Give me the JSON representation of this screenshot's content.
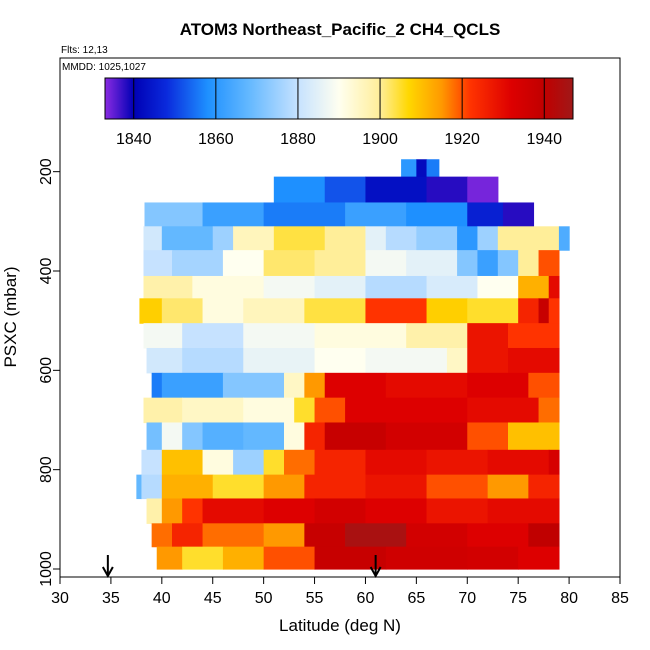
{
  "chart_data": {
    "type": "heatmap",
    "title": "ATOM3 Northeast_Pacific_2 CH4_QCLS",
    "flights_label": "Flts: 12,13",
    "dates_label": "MMDD: 1025,1027",
    "xlabel": "Latitude (deg N)",
    "ylabel": "PSXC (mbar)",
    "xlim": [
      30,
      85
    ],
    "ylim": [
      1000,
      0
    ],
    "x_ticks": [
      30,
      35,
      40,
      45,
      50,
      55,
      60,
      65,
      70,
      75,
      80,
      85
    ],
    "y_ticks": [
      200,
      400,
      600,
      800,
      1000
    ],
    "colorbar": {
      "min": 1833,
      "max": 1947,
      "ticks": [
        1840,
        1860,
        1880,
        1900,
        1920,
        1940
      ],
      "stops": [
        {
          "v": 1833,
          "color": "#8a2be2"
        },
        {
          "v": 1840,
          "color": "#0000b4"
        },
        {
          "v": 1848,
          "color": "#0a2adc"
        },
        {
          "v": 1858,
          "color": "#1e90ff"
        },
        {
          "v": 1868,
          "color": "#63b8ff"
        },
        {
          "v": 1880,
          "color": "#c6e2ff"
        },
        {
          "v": 1890,
          "color": "#fffff0"
        },
        {
          "v": 1900,
          "color": "#ffee99"
        },
        {
          "v": 1907,
          "color": "#ffd700"
        },
        {
          "v": 1915,
          "color": "#ff9900"
        },
        {
          "v": 1922,
          "color": "#ff3300"
        },
        {
          "v": 1932,
          "color": "#dd0000"
        },
        {
          "v": 1940,
          "color": "#c00000"
        },
        {
          "v": 1947,
          "color": "#a01818"
        }
      ]
    },
    "bands": [
      {
        "p_top": 175,
        "p_bot": 210,
        "segments": [
          [
            63.5,
            65,
            1860
          ],
          [
            65,
            66,
            1842
          ],
          [
            66,
            67.2,
            1856
          ]
        ]
      },
      {
        "p_top": 210,
        "p_bot": 262,
        "segments": [
          [
            51,
            56,
            1858
          ],
          [
            56,
            60,
            1852
          ],
          [
            60,
            66,
            1843
          ],
          [
            66,
            70,
            1838
          ],
          [
            70,
            73,
            1834
          ]
        ]
      },
      {
        "p_top": 262,
        "p_bot": 310,
        "segments": [
          [
            38.3,
            44,
            1872
          ],
          [
            44,
            50,
            1862
          ],
          [
            50,
            58,
            1856
          ],
          [
            58,
            64,
            1862
          ],
          [
            64,
            70,
            1858
          ],
          [
            70,
            73.5,
            1846
          ],
          [
            73.5,
            76.5,
            1838
          ]
        ]
      },
      {
        "p_top": 310,
        "p_bot": 358,
        "segments": [
          [
            38.2,
            40,
            1882
          ],
          [
            40,
            45,
            1868
          ],
          [
            45,
            47,
            1875
          ],
          [
            47,
            51,
            1896
          ],
          [
            51,
            56,
            1904
          ],
          [
            56,
            60,
            1900
          ],
          [
            60,
            62,
            1885
          ],
          [
            62,
            65,
            1878
          ],
          [
            65,
            69,
            1874
          ],
          [
            69,
            71,
            1860
          ],
          [
            71,
            73,
            1875
          ],
          [
            73,
            79,
            1900
          ],
          [
            79,
            80,
            1865
          ]
        ]
      },
      {
        "p_top": 358,
        "p_bot": 410,
        "segments": [
          [
            38.2,
            41,
            1880
          ],
          [
            41,
            46,
            1876
          ],
          [
            46,
            50,
            1890
          ],
          [
            50,
            55,
            1902
          ],
          [
            55,
            60,
            1900
          ],
          [
            60,
            64,
            1888
          ],
          [
            64,
            69,
            1885
          ],
          [
            69,
            71,
            1872
          ],
          [
            71,
            73,
            1862
          ],
          [
            73,
            75,
            1872
          ],
          [
            75,
            77,
            1900
          ],
          [
            77,
            79,
            1920
          ]
        ]
      },
      {
        "p_top": 410,
        "p_bot": 455,
        "segments": [
          [
            38.2,
            43,
            1898
          ],
          [
            43,
            50,
            1892
          ],
          [
            50,
            55,
            1888
          ],
          [
            55,
            60,
            1885
          ],
          [
            60,
            66,
            1878
          ],
          [
            66,
            71,
            1883
          ],
          [
            71,
            75,
            1890
          ],
          [
            75,
            78,
            1912
          ],
          [
            78,
            79,
            1930
          ]
        ]
      },
      {
        "p_top": 455,
        "p_bot": 505,
        "segments": [
          [
            37.8,
            40,
            1908
          ],
          [
            40,
            44,
            1902
          ],
          [
            44,
            48,
            1892
          ],
          [
            48,
            54,
            1896
          ],
          [
            54,
            60,
            1904
          ],
          [
            60,
            66,
            1922
          ],
          [
            66,
            70,
            1908
          ],
          [
            70,
            75,
            1905
          ],
          [
            75,
            77,
            1925
          ],
          [
            77,
            78,
            1938
          ],
          [
            78,
            79,
            1922
          ]
        ]
      },
      {
        "p_top": 505,
        "p_bot": 555,
        "segments": [
          [
            38.2,
            42,
            1888
          ],
          [
            42,
            48,
            1880
          ],
          [
            48,
            55,
            1888
          ],
          [
            55,
            64,
            1892
          ],
          [
            64,
            70,
            1898
          ],
          [
            70,
            74,
            1928
          ],
          [
            74,
            79,
            1922
          ]
        ]
      },
      {
        "p_top": 555,
        "p_bot": 605,
        "segments": [
          [
            38.5,
            42,
            1882
          ],
          [
            42,
            48,
            1878
          ],
          [
            48,
            55,
            1886
          ],
          [
            55,
            60,
            1890
          ],
          [
            60,
            68,
            1888
          ],
          [
            68,
            70,
            1895
          ],
          [
            70,
            74,
            1928
          ],
          [
            74,
            79,
            1930
          ]
        ]
      },
      {
        "p_top": 605,
        "p_bot": 655,
        "segments": [
          [
            39,
            40,
            1856
          ],
          [
            40,
            46,
            1862
          ],
          [
            46,
            52,
            1872
          ],
          [
            52,
            54,
            1895
          ],
          [
            54,
            56,
            1915
          ],
          [
            56,
            62,
            1932
          ],
          [
            62,
            70,
            1930
          ],
          [
            70,
            76,
            1932
          ],
          [
            76,
            79,
            1920
          ]
        ]
      },
      {
        "p_top": 655,
        "p_bot": 705,
        "segments": [
          [
            38.2,
            42,
            1898
          ],
          [
            42,
            48,
            1895
          ],
          [
            48,
            53,
            1892
          ],
          [
            53,
            55,
            1905
          ],
          [
            55,
            58,
            1920
          ],
          [
            58,
            70,
            1932
          ],
          [
            70,
            77,
            1930
          ],
          [
            77,
            79,
            1918
          ]
        ]
      },
      {
        "p_top": 705,
        "p_bot": 760,
        "segments": [
          [
            38.5,
            40,
            1870
          ],
          [
            40,
            42,
            1888
          ],
          [
            42,
            44,
            1872
          ],
          [
            44,
            48,
            1866
          ],
          [
            48,
            52,
            1868
          ],
          [
            52,
            54,
            1892
          ],
          [
            54,
            56,
            1925
          ],
          [
            56,
            62,
            1938
          ],
          [
            62,
            70,
            1935
          ],
          [
            70,
            74,
            1920
          ],
          [
            74,
            79,
            1910
          ]
        ]
      },
      {
        "p_top": 760,
        "p_bot": 810,
        "segments": [
          [
            38,
            40,
            1880
          ],
          [
            40,
            44,
            1910
          ],
          [
            44,
            47,
            1892
          ],
          [
            47,
            50,
            1875
          ],
          [
            50,
            52,
            1905
          ],
          [
            52,
            55,
            1918
          ],
          [
            55,
            60,
            1925
          ],
          [
            60,
            66,
            1930
          ],
          [
            66,
            72,
            1928
          ],
          [
            72,
            78,
            1930
          ],
          [
            78,
            79,
            1934
          ]
        ]
      },
      {
        "p_top": 810,
        "p_bot": 858,
        "segments": [
          [
            37.5,
            38,
            1868
          ],
          [
            38,
            40,
            1878
          ],
          [
            40,
            45,
            1912
          ],
          [
            45,
            50,
            1905
          ],
          [
            50,
            54,
            1915
          ],
          [
            54,
            60,
            1925
          ],
          [
            60,
            66,
            1928
          ],
          [
            66,
            72,
            1920
          ],
          [
            72,
            76,
            1915
          ],
          [
            76,
            79,
            1925
          ]
        ]
      },
      {
        "p_top": 858,
        "p_bot": 908,
        "segments": [
          [
            38.5,
            40,
            1898
          ],
          [
            40,
            42,
            1915
          ],
          [
            42,
            44,
            1922
          ],
          [
            44,
            50,
            1930
          ],
          [
            50,
            55,
            1932
          ],
          [
            55,
            60,
            1935
          ],
          [
            60,
            66,
            1932
          ],
          [
            66,
            72,
            1928
          ],
          [
            72,
            79,
            1930
          ]
        ]
      },
      {
        "p_top": 908,
        "p_bot": 955,
        "segments": [
          [
            39,
            41,
            1918
          ],
          [
            41,
            44,
            1925
          ],
          [
            44,
            50,
            1918
          ],
          [
            50,
            54,
            1915
          ],
          [
            54,
            58,
            1938
          ],
          [
            58,
            64,
            1945
          ],
          [
            64,
            70,
            1935
          ],
          [
            70,
            76,
            1932
          ],
          [
            76,
            79,
            1940
          ]
        ]
      },
      {
        "p_top": 955,
        "p_bot": 1000,
        "segments": [
          [
            39.5,
            42,
            1915
          ],
          [
            42,
            46,
            1905
          ],
          [
            46,
            50,
            1912
          ],
          [
            50,
            55,
            1920
          ],
          [
            55,
            62,
            1938
          ],
          [
            62,
            70,
            1936
          ],
          [
            70,
            75,
            1935
          ],
          [
            75,
            79,
            1932
          ]
        ]
      }
    ],
    "arrows_lat": [
      34.7,
      61
    ]
  }
}
